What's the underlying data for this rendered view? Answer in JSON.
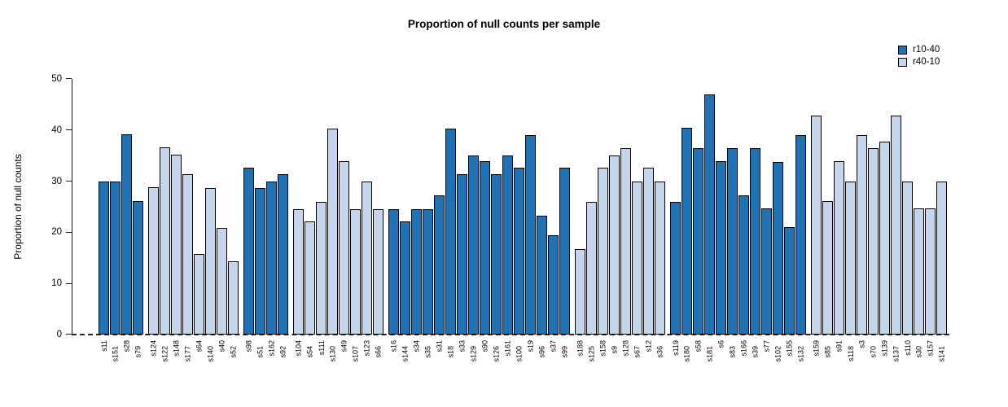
{
  "title": "Proportion of null counts per sample",
  "chart_data": {
    "type": "bar",
    "title": "Proportion of null counts per sample",
    "xlabel": "",
    "ylabel": "Proportion of null counts",
    "ylim": [
      0,
      50
    ],
    "yticks": [
      0,
      10,
      20,
      30,
      40,
      50
    ],
    "grid": false,
    "legend_position": "top-right",
    "baseline_style": "dashed",
    "legend": [
      {
        "label": "r10-40",
        "color": "#2172b2"
      },
      {
        "label": "r40-10",
        "color": "#c4d5ed"
      }
    ],
    "series_colors": {
      "r10-40": "#2172b2",
      "r40-10": "#c4d5ed"
    },
    "group_starts": [
      0,
      4,
      12,
      16,
      24,
      40,
      48,
      60
    ],
    "bars": [
      {
        "label": "s11",
        "value": 29.9,
        "series": "r10-40"
      },
      {
        "label": "s151",
        "value": 29.9,
        "series": "r10-40"
      },
      {
        "label": "s28",
        "value": 39.2,
        "series": "r10-40"
      },
      {
        "label": "s79",
        "value": 26.1,
        "series": "r10-40"
      },
      {
        "label": "s124",
        "value": 28.8,
        "series": "r40-10"
      },
      {
        "label": "s122",
        "value": 36.6,
        "series": "r40-10"
      },
      {
        "label": "s148",
        "value": 35.2,
        "series": "r40-10"
      },
      {
        "label": "s177",
        "value": 31.4,
        "series": "r40-10"
      },
      {
        "label": "s64",
        "value": 15.7,
        "series": "r40-10"
      },
      {
        "label": "s140",
        "value": 28.7,
        "series": "r40-10"
      },
      {
        "label": "s40",
        "value": 20.9,
        "series": "r40-10"
      },
      {
        "label": "s52",
        "value": 14.4,
        "series": "r40-10"
      },
      {
        "label": "s98",
        "value": 32.6,
        "series": "r10-40"
      },
      {
        "label": "s51",
        "value": 28.6,
        "series": "r10-40"
      },
      {
        "label": "s162",
        "value": 29.9,
        "series": "r10-40"
      },
      {
        "label": "s92",
        "value": 31.3,
        "series": "r10-40"
      },
      {
        "label": "s104",
        "value": 24.6,
        "series": "r40-10"
      },
      {
        "label": "s54",
        "value": 22.2,
        "series": "r40-10"
      },
      {
        "label": "s111",
        "value": 26.0,
        "series": "r40-10"
      },
      {
        "label": "s130",
        "value": 40.3,
        "series": "r40-10"
      },
      {
        "label": "s49",
        "value": 34.0,
        "series": "r40-10"
      },
      {
        "label": "s107",
        "value": 24.6,
        "series": "r40-10"
      },
      {
        "label": "s123",
        "value": 29.9,
        "series": "r40-10"
      },
      {
        "label": "s66",
        "value": 24.6,
        "series": "r40-10"
      },
      {
        "label": "s16",
        "value": 24.6,
        "series": "r10-40"
      },
      {
        "label": "s144",
        "value": 22.1,
        "series": "r10-40"
      },
      {
        "label": "s34",
        "value": 24.6,
        "series": "r10-40"
      },
      {
        "label": "s35",
        "value": 24.6,
        "series": "r10-40"
      },
      {
        "label": "s31",
        "value": 27.3,
        "series": "r10-40"
      },
      {
        "label": "s18",
        "value": 40.3,
        "series": "r10-40"
      },
      {
        "label": "s33",
        "value": 31.3,
        "series": "r10-40"
      },
      {
        "label": "s129",
        "value": 35.1,
        "series": "r10-40"
      },
      {
        "label": "s90",
        "value": 33.9,
        "series": "r10-40"
      },
      {
        "label": "s126",
        "value": 31.3,
        "series": "r10-40"
      },
      {
        "label": "s161",
        "value": 35.1,
        "series": "r10-40"
      },
      {
        "label": "s100",
        "value": 32.6,
        "series": "r10-40"
      },
      {
        "label": "s19",
        "value": 39.0,
        "series": "r10-40"
      },
      {
        "label": "s96",
        "value": 23.3,
        "series": "r10-40"
      },
      {
        "label": "s37",
        "value": 19.5,
        "series": "r10-40"
      },
      {
        "label": "s99",
        "value": 32.6,
        "series": "r10-40"
      },
      {
        "label": "s188",
        "value": 16.8,
        "series": "r40-10"
      },
      {
        "label": "s125",
        "value": 26.0,
        "series": "r40-10"
      },
      {
        "label": "s158",
        "value": 32.6,
        "series": "r40-10"
      },
      {
        "label": "s9",
        "value": 35.1,
        "series": "r40-10"
      },
      {
        "label": "s128",
        "value": 36.5,
        "series": "r40-10"
      },
      {
        "label": "s67",
        "value": 29.9,
        "series": "r40-10"
      },
      {
        "label": "s12",
        "value": 32.6,
        "series": "r40-10"
      },
      {
        "label": "s36",
        "value": 29.9,
        "series": "r40-10"
      },
      {
        "label": "s119",
        "value": 26.0,
        "series": "r10-40"
      },
      {
        "label": "s180",
        "value": 40.4,
        "series": "r10-40"
      },
      {
        "label": "s58",
        "value": 36.5,
        "series": "r10-40"
      },
      {
        "label": "s181",
        "value": 47.0,
        "series": "r10-40"
      },
      {
        "label": "s6",
        "value": 33.9,
        "series": "r10-40"
      },
      {
        "label": "s83",
        "value": 36.5,
        "series": "r10-40"
      },
      {
        "label": "s166",
        "value": 27.3,
        "series": "r10-40"
      },
      {
        "label": "s39",
        "value": 36.5,
        "series": "r10-40"
      },
      {
        "label": "s77",
        "value": 24.7,
        "series": "r10-40"
      },
      {
        "label": "s102",
        "value": 33.8,
        "series": "r10-40"
      },
      {
        "label": "s155",
        "value": 21.0,
        "series": "r10-40"
      },
      {
        "label": "s132",
        "value": 39.0,
        "series": "r10-40"
      },
      {
        "label": "s159",
        "value": 42.9,
        "series": "r40-10"
      },
      {
        "label": "s85",
        "value": 26.1,
        "series": "r40-10"
      },
      {
        "label": "s91",
        "value": 33.9,
        "series": "r40-10"
      },
      {
        "label": "s118",
        "value": 29.9,
        "series": "r40-10"
      },
      {
        "label": "s3",
        "value": 39.0,
        "series": "r40-10"
      },
      {
        "label": "s70",
        "value": 36.5,
        "series": "r40-10"
      },
      {
        "label": "s139",
        "value": 37.8,
        "series": "r40-10"
      },
      {
        "label": "s137",
        "value": 42.9,
        "series": "r40-10"
      },
      {
        "label": "s110",
        "value": 29.9,
        "series": "r40-10"
      },
      {
        "label": "s30",
        "value": 24.7,
        "series": "r40-10"
      },
      {
        "label": "s157",
        "value": 24.7,
        "series": "r40-10"
      },
      {
        "label": "s141",
        "value": 29.9,
        "series": "r40-10"
      }
    ]
  }
}
